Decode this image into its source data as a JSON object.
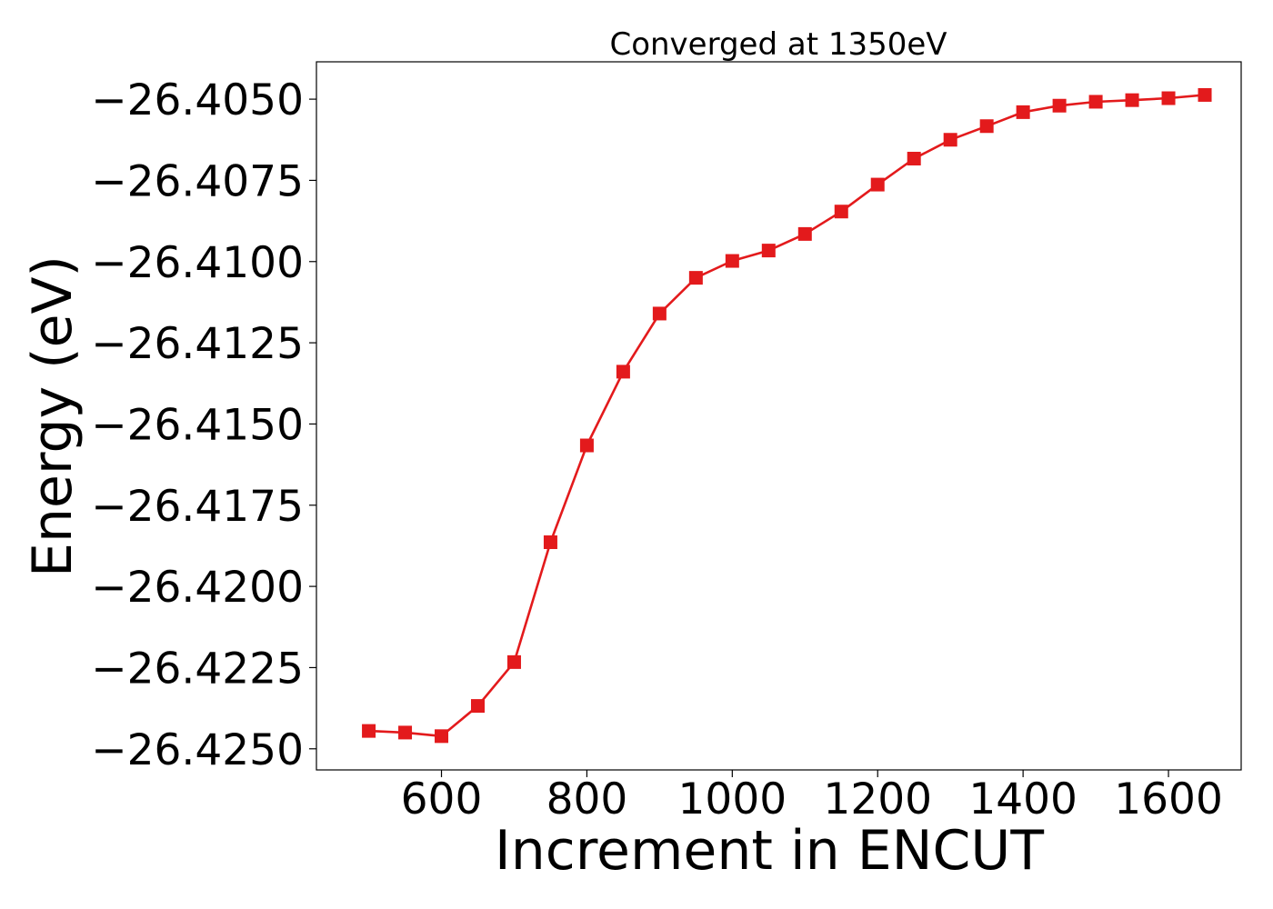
{
  "chart_data": {
    "type": "line",
    "title": "Converged at 1350eV",
    "xlabel": "Increment in ENCUT",
    "ylabel": "Energy (eV)",
    "xlim": [
      428,
      1700
    ],
    "ylim": [
      -26.42565,
      -26.40385
    ],
    "grid": false,
    "legend": "none",
    "x_ticks": [
      600,
      800,
      1000,
      1200,
      1400,
      1600
    ],
    "x_tick_labels": [
      "600",
      "800",
      "1000",
      "1200",
      "1400",
      "1600"
    ],
    "y_ticks": [
      -26.405,
      -26.4075,
      -26.41,
      -26.4125,
      -26.415,
      -26.4175,
      -26.42,
      -26.4225,
      -26.425
    ],
    "y_tick_labels": [
      "−26.4050",
      "−26.4075",
      "−26.4100",
      "−26.4125",
      "−26.4150",
      "−26.4175",
      "−26.4200",
      "−26.4225",
      "−26.4250"
    ],
    "series": [
      {
        "color": "#e31a1c",
        "marker": "square",
        "x": [
          500,
          550,
          600,
          650,
          700,
          750,
          800,
          850,
          900,
          950,
          1000,
          1050,
          1100,
          1150,
          1200,
          1250,
          1300,
          1350,
          1400,
          1450,
          1500,
          1550,
          1600,
          1650
        ],
        "values": [
          -26.42445,
          -26.4245,
          -26.42461,
          -26.42368,
          -26.42233,
          -26.41864,
          -26.41566,
          -26.41339,
          -26.4116,
          -26.4105,
          -26.40998,
          -26.40966,
          -26.40915,
          -26.40846,
          -26.40763,
          -26.40683,
          -26.40625,
          -26.40583,
          -26.4054,
          -26.4052,
          -26.40508,
          -26.40503,
          -26.40497,
          -26.40487
        ]
      }
    ]
  }
}
